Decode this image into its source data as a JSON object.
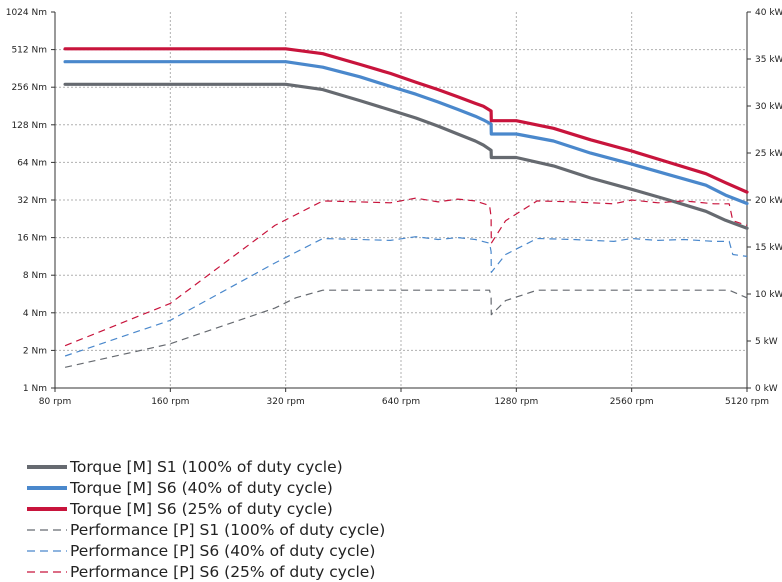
{
  "chart_data": {
    "type": "line",
    "title": "",
    "xlabel": "",
    "ylabel_left": "",
    "ylabel_right": "",
    "x_scale": "log2",
    "x_ticks": [
      "80 rpm",
      "160 rpm",
      "320 rpm",
      "640 rpm",
      "1280 rpm",
      "2560 rpm",
      "5120 rpm"
    ],
    "x_tick_values": [
      80,
      160,
      320,
      640,
      1280,
      2560,
      5120
    ],
    "xlim": [
      80,
      5120
    ],
    "y_left_scale": "log2",
    "y_left_ticks": [
      "1 Nm",
      "2 Nm",
      "4 Nm",
      "8 Nm",
      "16 Nm",
      "32 Nm",
      "64 Nm",
      "128 Nm",
      "256 Nm",
      "512 Nm",
      "1024 Nm"
    ],
    "y_left_tick_values": [
      1,
      2,
      4,
      8,
      16,
      32,
      64,
      128,
      256,
      512,
      1024
    ],
    "y_left_lim": [
      1,
      1024
    ],
    "y_right_scale": "linear",
    "y_right_ticks": [
      "0 kW",
      "5 kW",
      "10 kW",
      "15 kW",
      "20 kW",
      "25 kW",
      "30 kW",
      "35 kW",
      "40 kW"
    ],
    "y_right_tick_values": [
      0,
      5,
      10,
      15,
      20,
      25,
      30,
      35,
      40
    ],
    "y_right_lim": [
      0,
      40
    ],
    "grid": true,
    "legend_position": "bottom-left",
    "series": [
      {
        "name": "Torque [M] S1 (100% of duty cycle)",
        "axis": "left",
        "color": "#666a70",
        "style": "solid",
        "x": [
          85,
          320,
          400,
          500,
          600,
          700,
          800,
          900,
          1000,
          1050,
          1100,
          1101,
          1280,
          1600,
          2000,
          2560,
          3200,
          4000,
          4500,
          5120
        ],
        "y": [
          270,
          270,
          245,
          200,
          168,
          145,
          125,
          108,
          95,
          88,
          80,
          70,
          70,
          60,
          48,
          39,
          32,
          26,
          22,
          19
        ]
      },
      {
        "name": "Torque [M] S6 (40% of duty cycle)",
        "axis": "left",
        "color": "#4a88cc",
        "style": "solid",
        "x": [
          85,
          320,
          400,
          500,
          600,
          700,
          800,
          900,
          1000,
          1050,
          1100,
          1101,
          1280,
          1600,
          2000,
          2560,
          3200,
          4000,
          4500,
          5120
        ],
        "y": [
          410,
          410,
          370,
          310,
          260,
          225,
          195,
          170,
          150,
          140,
          130,
          108,
          108,
          95,
          76,
          62,
          51,
          42,
          35,
          30
        ]
      },
      {
        "name": "Torque [M] S6 (25% of duty cycle)",
        "axis": "left",
        "color": "#c8143c",
        "style": "solid",
        "x": [
          85,
          320,
          400,
          500,
          600,
          700,
          800,
          900,
          1000,
          1050,
          1100,
          1101,
          1280,
          1600,
          2000,
          2560,
          3200,
          4000,
          4500,
          5120
        ],
        "y": [
          520,
          520,
          475,
          390,
          330,
          280,
          245,
          215,
          190,
          180,
          165,
          138,
          138,
          120,
          97,
          79,
          64,
          52,
          44,
          37
        ]
      },
      {
        "name": "Performance [P] S1 (100% of duty cycle)",
        "axis": "right",
        "color": "#666a70",
        "style": "dashed",
        "x": [
          85,
          160,
          300,
          340,
          400,
          600,
          800,
          1000,
          1090,
          1100,
          1101,
          1200,
          1450,
          1800,
          2560,
          3200,
          4000,
          4600,
          5120
        ],
        "y": [
          2.2,
          4.7,
          8.5,
          9.6,
          10.4,
          10.4,
          10.4,
          10.4,
          10.4,
          9.6,
          7.8,
          9.3,
          10.4,
          10.4,
          10.4,
          10.4,
          10.4,
          10.4,
          9.6
        ]
      },
      {
        "name": "Performance [P] S6 (40% of duty cycle)",
        "axis": "right",
        "color": "#4a88cc",
        "style": "dashed",
        "x": [
          85,
          160,
          300,
          400,
          500,
          600,
          700,
          800,
          900,
          1000,
          1090,
          1100,
          1101,
          1200,
          1450,
          1800,
          2300,
          2560,
          3000,
          3500,
          4200,
          4600,
          4700,
          5120
        ],
        "y": [
          3.4,
          7.2,
          13.3,
          15.9,
          15.8,
          15.7,
          16.1,
          15.8,
          16.0,
          15.8,
          15.4,
          14.5,
          12.3,
          14.2,
          15.9,
          15.8,
          15.6,
          15.9,
          15.7,
          15.8,
          15.6,
          15.6,
          14.2,
          14.0
        ]
      },
      {
        "name": "Performance [P] S6 (25% of duty cycle)",
        "axis": "right",
        "color": "#c8143c",
        "style": "dashed",
        "x": [
          85,
          160,
          300,
          400,
          500,
          600,
          700,
          800,
          900,
          1000,
          1090,
          1100,
          1101,
          1200,
          1450,
          1800,
          2300,
          2560,
          3000,
          3500,
          4200,
          4600,
          4700,
          5120
        ],
        "y": [
          4.5,
          9.0,
          17.3,
          19.9,
          19.8,
          19.7,
          20.2,
          19.8,
          20.1,
          19.9,
          19.4,
          18.2,
          15.4,
          17.8,
          19.9,
          19.8,
          19.6,
          20.0,
          19.7,
          19.9,
          19.6,
          19.6,
          17.8,
          17.3
        ]
      }
    ]
  },
  "legend": {
    "items": [
      {
        "label": "Torque [M] S1 (100% of duty cycle)",
        "color": "#666a70",
        "style": "solid"
      },
      {
        "label": "Torque [M] S6 (40% of duty cycle)",
        "color": "#4a88cc",
        "style": "solid"
      },
      {
        "label": "Torque [M] S6 (25% of duty cycle)",
        "color": "#c8143c",
        "style": "solid"
      },
      {
        "label": "Performance [P] S1 (100% of duty cycle)",
        "color": "#666a70",
        "style": "dashed"
      },
      {
        "label": "Performance [P] S6 (40% of duty cycle)",
        "color": "#4a88cc",
        "style": "dashed"
      },
      {
        "label": "Performance [P] S6 (25% of duty cycle)",
        "color": "#c8143c",
        "style": "dashed"
      }
    ]
  }
}
